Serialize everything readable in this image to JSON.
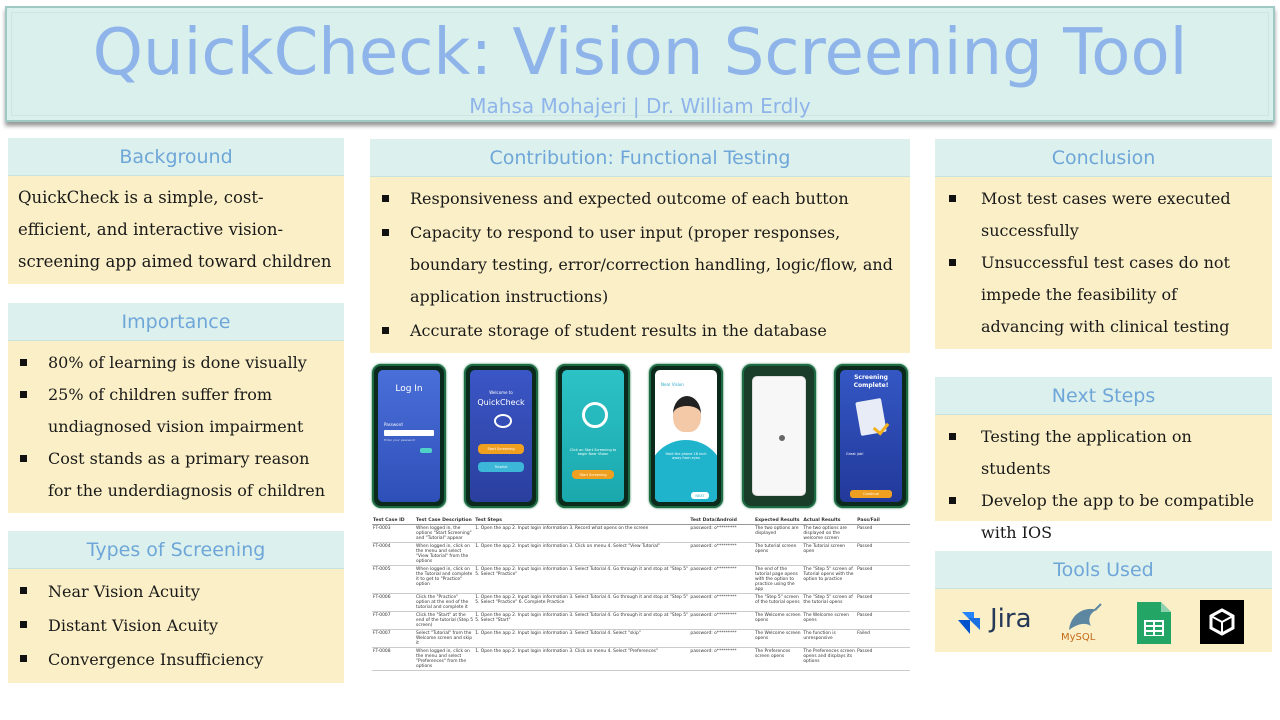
{
  "header": {
    "title": "QuickCheck: Vision Screening Tool",
    "authors": "Mahsa Mohajeri | Dr. William Erdly"
  },
  "background": {
    "heading": "Background",
    "text": "QuickCheck is a simple, cost-efficient, and interactive vision-screening app aimed toward children"
  },
  "importance": {
    "heading": "Importance",
    "items": [
      "80% of learning is done visually",
      "25% of children suffer from undiagnosed vision impairment",
      "Cost stands as a primary reason for the underdiagnosis of children"
    ]
  },
  "types": {
    "heading": "Types of Screening",
    "items": [
      "Near Vision Acuity",
      "Distant Vision Acuity",
      "Convergence Insufficiency"
    ]
  },
  "contribution": {
    "heading": "Contribution: Functional Testing",
    "items": [
      "Responsiveness and expected outcome of each button",
      "Capacity to respond to user input (proper responses, boundary testing, error/correction handling, logic/flow, and application instructions)",
      "Accurate storage of student results in the database"
    ]
  },
  "phones": {
    "login_title": "Log In",
    "login_password_label": "Password",
    "login_placeholder": "Enter your password",
    "welcome_small": "Welcome to",
    "welcome_brand": "QuickCheck",
    "start_screening": "Start Screening",
    "tutorial": "Tutorial",
    "click_start": "Click on Start Screening to begin Near Vision",
    "near_vision": "Near Vision",
    "hold_phone": "Hold the phone 16 inch away from eyes",
    "next": "NEXT",
    "screening_complete": "Screening Complete!",
    "complete_msg": "Great job!",
    "complete_button": "Continue"
  },
  "test_table": {
    "headers": [
      "Test Case ID",
      "Test Case Description",
      "Test Steps",
      "Test Data/Android",
      "Expected Results",
      "Actual Results",
      "Pass/Fail"
    ],
    "rows": [
      [
        "FT-0003",
        "When logged in, the options \"Start Screening\" and \"Tutorial\" appear",
        "1. Open the app 2. Input login information 3. Record what opens on the screen",
        "password: o*********",
        "The two options are displayed",
        "The two options are displayed on the welcome screen",
        "Passed"
      ],
      [
        "FT-0004",
        "When logged in, click on the menu and select \"View Tutorial\" from the options",
        "1. Open the app 2. Input login information 3. Click on menu 4. Select \"View Tutorial\"",
        "password: o*********",
        "The tutorial screen opens",
        "The Tutorial screen open",
        "Passed"
      ],
      [
        "FT-0005",
        "When logged in, click on the Tutorial and complete it to get to \"Practice\" option",
        "1. Open the app 2. Input login information 3. Select Tutorial 4. Go through it and stop at \"Step 5\" 5. Select \"Practice\"",
        "password: o*********",
        "The end of the tutorial page opens with the option to practice using the app",
        "The \"Step 5\" screen of Tutorial opens with the option to practice",
        "Passed"
      ],
      [
        "FT-0006",
        "Click the \"Practice\" option at the end of the tutorial and complete it",
        "1. Open the app 2. Input login information 3. Select Tutorial 4. Go through it and stop at \"Step 5\" 5. Select \"Practice\" 6. Complete Practice",
        "password: o*********",
        "The \"Step 5\" screen of the tutorial opens",
        "The \"Step 5\" screen of the tutorial opens",
        "Passed"
      ],
      [
        "FT-0007",
        "Click the \"Start\" at the end of the tutorial (Step 5 screen)",
        "1. Open the app 2. Input login information 3. Select Tutorial 4. Go through it and stop at \"Step 5\" 5. Select \"Start\"",
        "password: o*********",
        "The Welcome screen opens",
        "The Welcome screen opens",
        "Passed"
      ],
      [
        "FT-0007",
        "Select \"Tutorial\" from the Welcome screen and skip it",
        "1. Open the app 2. Input login information 3. Select Tutorial 4. Select \"skip\"",
        "password: o*********",
        "The Welcome screen opens",
        "The function is unresponsive",
        "Failed"
      ],
      [
        "FT-0008",
        "When logged in, click on the menu and select \"Preferences\" from the options",
        "1. Open the app 2. Input login information 3. Click on menu 4. Select \"Preferences\"",
        "password: o*********",
        "The Preferences screen opens",
        "The Preferences screen opens and displays its options",
        "Passed"
      ]
    ]
  },
  "conclusion": {
    "heading": "Conclusion",
    "items": [
      "Most test cases were executed successfully",
      "Unsuccessful test cases do not impede the feasibility of advancing with clinical testing"
    ]
  },
  "next_steps": {
    "heading": "Next Steps",
    "items": [
      "Testing the application on students",
      "Develop the app to be compatible with IOS"
    ]
  },
  "tools": {
    "heading": "Tools Used",
    "jira_label": "Jira",
    "mysql_label": "MySQL"
  },
  "colors": {
    "header_text": "#8fb4ea",
    "panel_bg": "#faefc6",
    "panel_head_bg": "#dcf1ee",
    "phone_frame": "#1d6b43"
  }
}
